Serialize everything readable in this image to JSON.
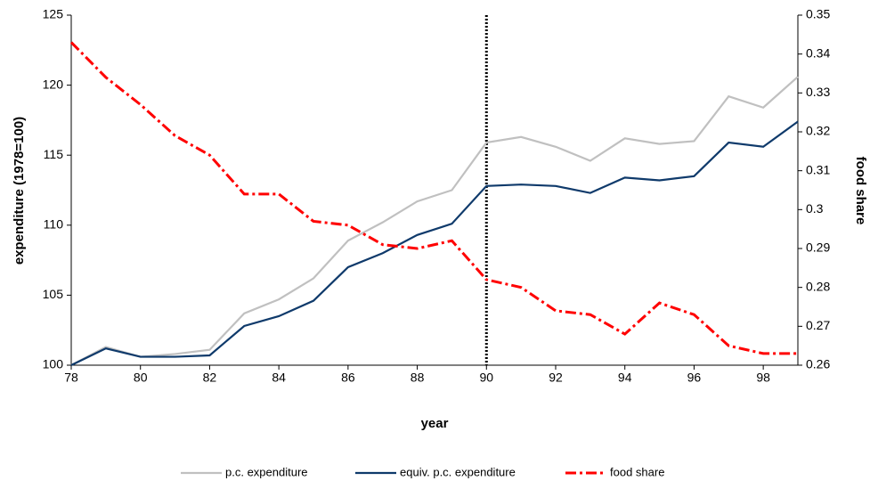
{
  "chart_data": {
    "type": "line",
    "x": [
      78,
      79,
      80,
      81,
      82,
      83,
      84,
      85,
      86,
      87,
      88,
      89,
      90,
      91,
      92,
      93,
      94,
      95,
      96,
      97,
      98,
      99
    ],
    "series": [
      {
        "name": "p.c. expenditure",
        "color": "#c0c0c0",
        "values": [
          100,
          101.3,
          100.6,
          100.8,
          101.1,
          103.7,
          104.7,
          106.2,
          108.9,
          110.2,
          111.7,
          112.5,
          115.9,
          116.3,
          115.6,
          114.6,
          116.2,
          115.8,
          116.0,
          119.2,
          118.4,
          120.6
        ]
      },
      {
        "name": "equiv. p.c. expenditure",
        "color": "#0f3a6b",
        "values": [
          100,
          101.2,
          100.6,
          100.6,
          100.7,
          102.8,
          103.5,
          104.6,
          107.0,
          108.0,
          109.3,
          110.1,
          112.8,
          112.9,
          112.8,
          112.3,
          113.4,
          113.2,
          113.5,
          115.9,
          115.6,
          117.4
        ]
      },
      {
        "name": "food share",
        "color": "#ff0000",
        "axis": "y2",
        "values": [
          0.343,
          0.334,
          0.327,
          0.319,
          0.314,
          0.304,
          0.304,
          0.297,
          0.296,
          0.291,
          0.29,
          0.292,
          0.282,
          0.28,
          0.274,
          0.273,
          0.268,
          0.276,
          0.273,
          0.265,
          0.263,
          0.263
        ]
      }
    ],
    "xlabel": "year",
    "ylabel": "expenditure (1978=100)",
    "y2label": "food share",
    "xlim": [
      78,
      99
    ],
    "xticks": [
      78,
      80,
      82,
      84,
      86,
      88,
      90,
      92,
      94,
      96,
      98
    ],
    "ylim": [
      100,
      125
    ],
    "yticks": [
      100,
      105,
      110,
      115,
      120,
      125
    ],
    "y2lim": [
      0.26,
      0.35
    ],
    "y2ticks": [
      0.26,
      0.27,
      0.28,
      0.29,
      0.3,
      0.31,
      0.32,
      0.33,
      0.34,
      0.35
    ],
    "vline": 90,
    "legend": "bottom"
  }
}
